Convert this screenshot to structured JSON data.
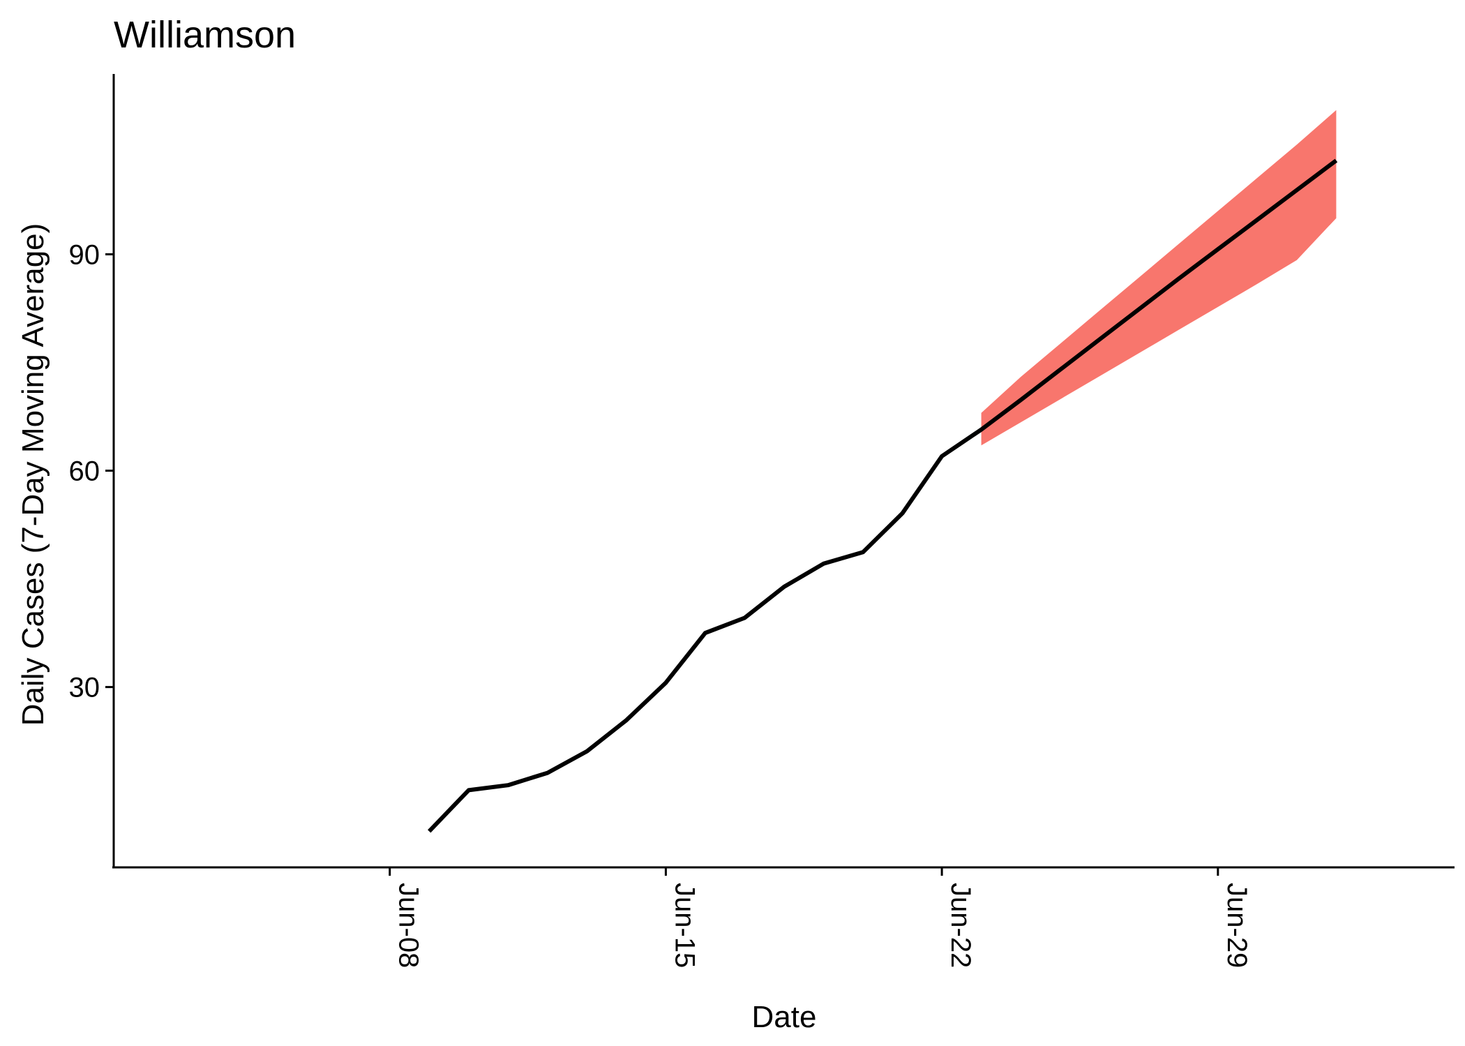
{
  "chart_data": {
    "type": "line",
    "title": "Williamson",
    "xlabel": "Date",
    "ylabel": "Daily Cases (7-Day Moving Average)",
    "x_ticks": [
      "Jun-08",
      "Jun-15",
      "Jun-22",
      "Jun-29"
    ],
    "y_ticks": [
      30,
      60,
      90
    ],
    "xlim": [
      "2020-06-01",
      "2020-07-05"
    ],
    "ylim": [
      5,
      115
    ],
    "grid": false,
    "legend": "none",
    "colors": {
      "line": "#000000",
      "band": "#F8766D"
    },
    "series": [
      {
        "x": [
          "2020-06-09",
          "2020-06-10",
          "2020-06-11",
          "2020-06-12",
          "2020-06-13",
          "2020-06-14",
          "2020-06-15",
          "2020-06-16",
          "2020-06-17",
          "2020-06-18",
          "2020-06-19",
          "2020-06-20",
          "2020-06-21",
          "2020-06-22",
          "2020-06-23",
          "2020-06-24",
          "2020-06-25",
          "2020-06-26",
          "2020-06-27",
          "2020-06-28",
          "2020-06-29",
          "2020-06-30",
          "2020-07-01",
          "2020-07-02"
        ],
        "values": [
          10,
          15.7,
          16.4,
          18.1,
          21.1,
          25.4,
          30.6,
          37.5,
          39.6,
          43.9,
          47.1,
          48.7,
          54.1,
          62,
          65.7,
          69.8,
          74,
          78.2,
          82.4,
          86.6,
          90.7,
          94.8,
          98.9,
          103
        ]
      }
    ],
    "ribbon": {
      "x": [
        "2020-06-23",
        "2020-06-24",
        "2020-06-25",
        "2020-06-26",
        "2020-06-27",
        "2020-06-28",
        "2020-06-29",
        "2020-06-30",
        "2020-07-01",
        "2020-07-02"
      ],
      "lower": [
        63.5,
        66.7,
        69.9,
        73.1,
        76.3,
        79.5,
        82.7,
        85.9,
        89.2,
        95
      ],
      "upper": [
        68,
        73,
        77.6,
        82.2,
        86.8,
        91.4,
        96,
        100.6,
        105.2,
        110
      ]
    }
  }
}
